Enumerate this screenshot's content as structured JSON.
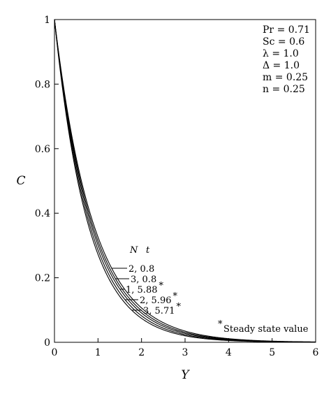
{
  "chart_data": {
    "type": "line",
    "xlabel": "Y",
    "ylabel": "C",
    "xlim": [
      0,
      6
    ],
    "ylim": [
      0,
      1
    ],
    "xticks": [
      "0",
      "1",
      "2",
      "3",
      "4",
      "5",
      "6"
    ],
    "yticks": [
      "0",
      "0.2",
      "0.4",
      "0.6",
      "0.8",
      "1"
    ],
    "grid": false,
    "parameters": [
      "Pr = 0.71",
      "Sc = 0.6",
      "λ = 1.0",
      "Δ = 1.0",
      "m = 0.25",
      "n = 0.25"
    ],
    "legend_header": {
      "n_label": "N",
      "t_label": "t"
    },
    "series": [
      {
        "name": "2, 0.8",
        "decay": 1.12,
        "points": [
          [
            0,
            1
          ],
          [
            0.5,
            0.572
          ],
          [
            1,
            0.326
          ],
          [
            1.5,
            0.186
          ],
          [
            2,
            0.106
          ],
          [
            2.5,
            0.061
          ],
          [
            3,
            0.035
          ],
          [
            3.5,
            0.02
          ],
          [
            4,
            0.011
          ],
          [
            5,
            0.004
          ],
          [
            6,
            0.001
          ]
        ]
      },
      {
        "name": "3, 0.8",
        "decay": 1.16,
        "points": [
          [
            0,
            1
          ],
          [
            0.5,
            0.56
          ],
          [
            1,
            0.313
          ],
          [
            1.5,
            0.175
          ],
          [
            2,
            0.098
          ],
          [
            2.5,
            0.055
          ],
          [
            3,
            0.031
          ],
          [
            3.5,
            0.017
          ],
          [
            4,
            0.01
          ],
          [
            5,
            0.003
          ],
          [
            6,
            0.001
          ]
        ]
      },
      {
        "name": "1, 5.88",
        "star": true,
        "decay": 1.2,
        "points": [
          [
            0,
            1
          ],
          [
            0.5,
            0.549
          ],
          [
            1,
            0.301
          ],
          [
            1.5,
            0.165
          ],
          [
            2,
            0.091
          ],
          [
            2.5,
            0.05
          ],
          [
            3,
            0.027
          ],
          [
            3.5,
            0.015
          ],
          [
            4,
            0.008
          ],
          [
            5,
            0.002
          ],
          [
            6,
            0.001
          ]
        ]
      },
      {
        "name": "2, 5.96",
        "star": true,
        "decay": 1.25,
        "points": [
          [
            0,
            1
          ],
          [
            0.5,
            0.535
          ],
          [
            1,
            0.287
          ],
          [
            1.5,
            0.153
          ],
          [
            2,
            0.082
          ],
          [
            2.5,
            0.044
          ],
          [
            3,
            0.024
          ],
          [
            3.5,
            0.013
          ],
          [
            4,
            0.007
          ],
          [
            5,
            0.002
          ],
          [
            6,
            0.001
          ]
        ]
      },
      {
        "name": "3, 5.71",
        "star": true,
        "decay": 1.3,
        "points": [
          [
            0,
            1
          ],
          [
            0.5,
            0.522
          ],
          [
            1,
            0.273
          ],
          [
            1.5,
            0.142
          ],
          [
            2,
            0.074
          ],
          [
            2.5,
            0.039
          ],
          [
            3,
            0.02
          ],
          [
            3.5,
            0.011
          ],
          [
            4,
            0.006
          ],
          [
            5,
            0.001
          ],
          [
            6,
            0
          ]
        ]
      }
    ],
    "note": {
      "symbol": "*",
      "text": "Steady state value"
    }
  }
}
